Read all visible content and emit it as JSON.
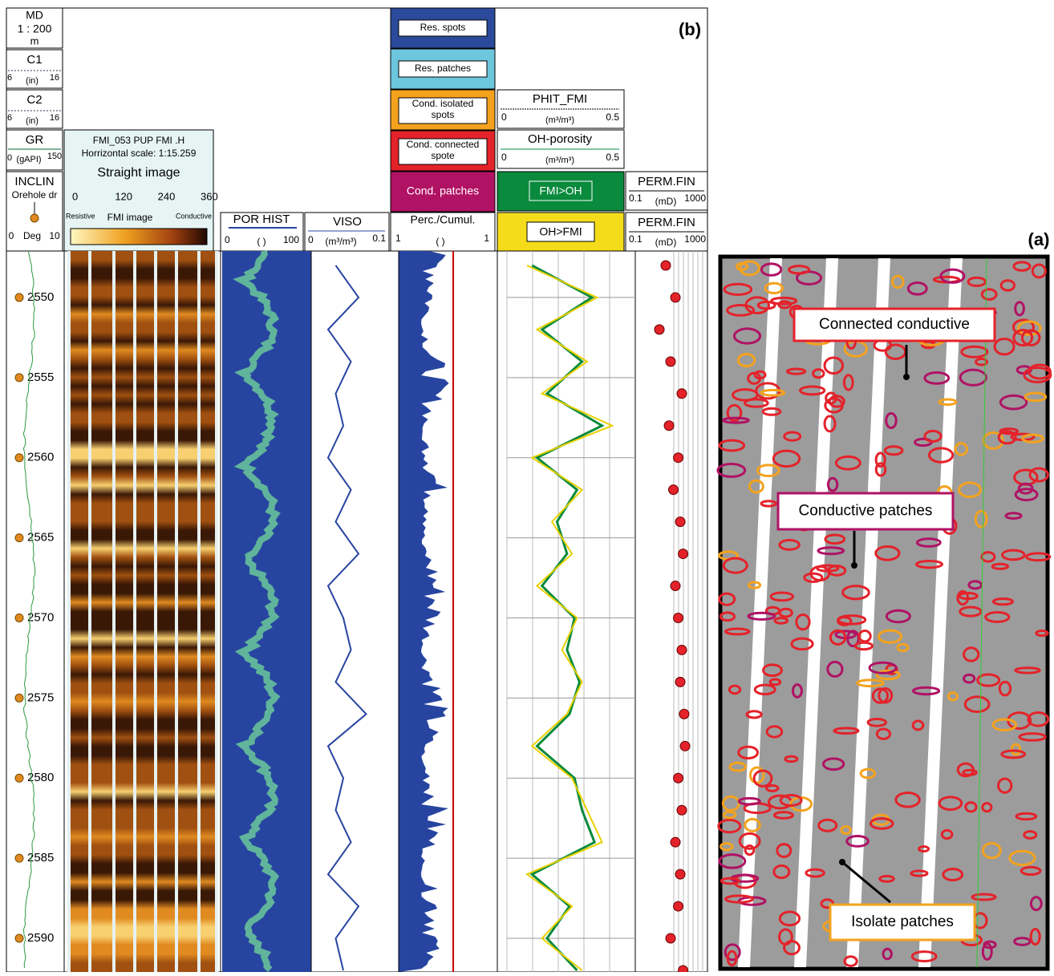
{
  "header": {
    "md": {
      "title": "MD",
      "scale": "1 : 200",
      "unit": "m"
    },
    "c1": {
      "title": "C1",
      "min": 6,
      "unit": "(in)",
      "max": 16
    },
    "c2": {
      "title": "C2",
      "min": 6,
      "unit": "(in)",
      "max": 16
    },
    "gr": {
      "title": "GR",
      "min": 0,
      "unit": "(gAPI)",
      "max": 150
    },
    "inclin": {
      "title": "INCLIN",
      "subtitle": "Orehole dr",
      "min": 0,
      "unit": "Deg",
      "max": 10
    },
    "fmi": {
      "line1": "FMI_053 PUP FMI .H",
      "line2": "Horrizontal scale: 1:15.259",
      "title": "Straight image",
      "azimuth_ticks": [
        0,
        120,
        240,
        360
      ],
      "left": "Resistive",
      "center": "FMI image",
      "right": "Conductive"
    },
    "por_hist": {
      "title": "POR HIST",
      "min": 0,
      "unit": "(  )",
      "max": 100
    },
    "viso": {
      "title": "VISO",
      "min": 0,
      "unit": "(m³/m³)",
      "max": 0.1
    },
    "classes": [
      [
        "Res. spots"
      ],
      [
        "Res. patches"
      ],
      [
        "Cond. isolated",
        "spots"
      ],
      [
        "Cond. connected",
        "spote"
      ],
      [
        "Cond. patches"
      ]
    ],
    "perc": {
      "title": "Perc./Cumul.",
      "min": 1,
      "unit": "(  )",
      "max": 1
    },
    "phit_fmi": {
      "title": "PHIT_FMI",
      "min": 0,
      "unit": "(m³/m³)",
      "max": 0.5
    },
    "oh_porosity": {
      "title": "OH-porosity",
      "min": 0,
      "unit": "(m³/m³)",
      "max": 0.5
    },
    "fmi_gt_oh": "FMI>OH",
    "oh_gt_fmi": "OH>FMI",
    "perm_fin_1": {
      "title": "PERM.FIN",
      "min": 0.1,
      "unit": "(mD)",
      "max": 1000
    },
    "perm_fin_2": {
      "title": "PERM.FIN",
      "min": 0.1,
      "unit": "(mD)",
      "max": 1000
    }
  },
  "panel_b": {
    "label": "(b)"
  },
  "depth": {
    "ticks": [
      2550,
      2555,
      2560,
      2565,
      2570,
      2575,
      2580,
      2585,
      2590
    ],
    "lim": [
      2547.1,
      2592.1
    ]
  },
  "curves": {
    "depth": [
      2548,
      2550,
      2552,
      2554,
      2556,
      2558,
      2560,
      2562,
      2564,
      2566,
      2568,
      2570,
      2572,
      2574,
      2576,
      2578,
      2580,
      2582,
      2584,
      2586,
      2588,
      2590,
      2592
    ],
    "phit_fmi": [
      0.08,
      0.36,
      0.12,
      0.32,
      0.14,
      0.42,
      0.1,
      0.3,
      0.18,
      0.26,
      0.12,
      0.28,
      0.22,
      0.3,
      0.24,
      0.1,
      0.26,
      0.32,
      0.38,
      0.08,
      0.26,
      0.14,
      0.3
    ],
    "oh_porosity": [
      0.1,
      0.34,
      0.14,
      0.3,
      0.16,
      0.38,
      0.12,
      0.28,
      0.2,
      0.24,
      0.14,
      0.27,
      0.24,
      0.29,
      0.25,
      0.12,
      0.27,
      0.3,
      0.35,
      0.1,
      0.25,
      0.16,
      0.28
    ],
    "viso": [
      0.03,
      0.06,
      0.02,
      0.05,
      0.03,
      0.04,
      0.02,
      0.05,
      0.03,
      0.06,
      0.02,
      0.04,
      0.05,
      0.03,
      0.07,
      0.02,
      0.04,
      0.03,
      0.05,
      0.02,
      0.06,
      0.03,
      0.04
    ],
    "perm_fin": [
      5,
      20,
      2,
      10,
      50,
      8,
      30,
      15,
      40,
      60,
      20,
      30,
      50,
      40,
      70,
      80,
      30,
      50,
      20,
      40,
      30,
      10,
      60
    ]
  },
  "panel_a": {
    "label": "(a)",
    "annotations": [
      "Connected conductive",
      "Conductive patches",
      "Isolate patches"
    ]
  }
}
